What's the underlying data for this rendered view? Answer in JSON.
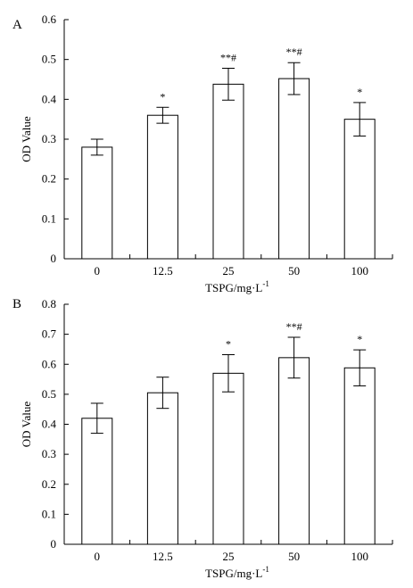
{
  "chart_data": [
    {
      "type": "bar",
      "panel_label": "A",
      "categories": [
        "0",
        "12.5",
        "25",
        "50",
        "100"
      ],
      "values": [
        0.28,
        0.36,
        0.438,
        0.452,
        0.35
      ],
      "errors": [
        0.02,
        0.02,
        0.04,
        0.04,
        0.042
      ],
      "significance": [
        "",
        "*",
        "**#",
        "**#",
        "*"
      ],
      "xlabel": "TSPG/mg·L",
      "xlabel_superscript": "-1",
      "ylabel": "OD Value",
      "ylim": [
        0,
        0.6
      ],
      "yticks": [
        "0",
        "0.1",
        "0.2",
        "0.3",
        "0.4",
        "0.5",
        "0.6"
      ]
    },
    {
      "type": "bar",
      "panel_label": "B",
      "categories": [
        "0",
        "12.5",
        "25",
        "50",
        "100"
      ],
      "values": [
        0.42,
        0.505,
        0.57,
        0.622,
        0.588
      ],
      "errors": [
        0.05,
        0.052,
        0.062,
        0.068,
        0.06
      ],
      "significance": [
        "",
        "",
        "*",
        "**#",
        "*"
      ],
      "xlabel": "TSPG/mg·L",
      "xlabel_superscript": "-1",
      "ylabel": "OD Value",
      "ylim": [
        0,
        0.8
      ],
      "yticks": [
        "0",
        "0.1",
        "0.2",
        "0.3",
        "0.4",
        "0.5",
        "0.6",
        "0.7",
        "0.8"
      ]
    }
  ]
}
